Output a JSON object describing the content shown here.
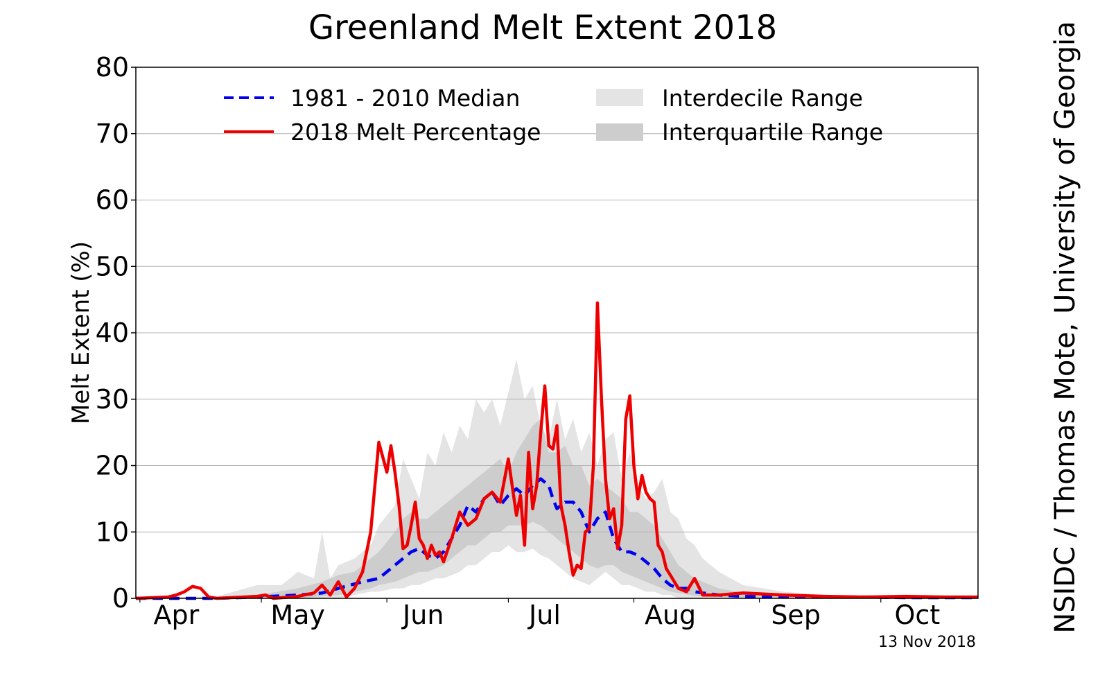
{
  "chart_data": {
    "type": "line",
    "title": "Greenland Melt Extent 2018",
    "xlabel": "",
    "ylabel": "Melt Extent (%)",
    "ylim": [
      0,
      80
    ],
    "yticks": [
      "0",
      "10",
      "20",
      "30",
      "40",
      "50",
      "60",
      "70",
      "80"
    ],
    "xlim": [
      0,
      208
    ],
    "xticks": [
      {
        "label": "Apr",
        "day": 10
      },
      {
        "label": "May",
        "day": 40
      },
      {
        "label": "Jun",
        "day": 71
      },
      {
        "label": "Jul",
        "day": 101
      },
      {
        "label": "Aug",
        "day": 132
      },
      {
        "label": "Sep",
        "day": 163
      },
      {
        "label": "Oct",
        "day": 193
      }
    ],
    "grid": "horizontal",
    "legend": {
      "placement": "top-center",
      "median_label": "1981 - 2010 Median",
      "melt_label": "2018 Melt Percentage",
      "interdecile_label": "Interdecile Range",
      "interquartile_label": "Interquartile Range"
    },
    "colors": {
      "median": "#0000ee",
      "melt": "#ee0000",
      "interdecile": "#e4e4e4",
      "interquartile": "#cdcdcd",
      "grid": "#b0b0b0"
    },
    "series": [
      {
        "name": "1981 - 2010 Median",
        "style": "dashed",
        "x": [
          0,
          10,
          20,
          30,
          40,
          46,
          50,
          56,
          60,
          64,
          66,
          68,
          70,
          72,
          74,
          76,
          78,
          80,
          82,
          84,
          86,
          88,
          90,
          92,
          94,
          96,
          98,
          100,
          102,
          103,
          104,
          106,
          108,
          110,
          112,
          114,
          116,
          118,
          120,
          122,
          124,
          126,
          128,
          130,
          132,
          134,
          136,
          138,
          140,
          144,
          150,
          160,
          170,
          180,
          190,
          200,
          208
        ],
        "values": [
          0,
          0,
          0,
          0.2,
          0.5,
          0.8,
          1.5,
          2.5,
          3,
          5,
          6,
          7,
          7.5,
          6.5,
          6,
          7,
          9,
          11,
          14,
          13,
          15,
          16,
          14,
          15.5,
          16.5,
          15.5,
          17,
          18,
          17,
          15,
          13.5,
          14.5,
          14.5,
          13,
          10,
          12,
          13,
          9,
          7,
          7,
          6.5,
          5.5,
          4.5,
          3,
          2,
          1.5,
          1.5,
          1,
          0.8,
          0.5,
          0.3,
          0.2,
          0.2,
          0.2,
          0.1,
          0.1,
          0.1
        ]
      },
      {
        "name": "2018 Melt Percentage",
        "style": "solid",
        "x": [
          0,
          8,
          10,
          12,
          14,
          16,
          18,
          20,
          30,
          32,
          34,
          40,
          44,
          46,
          48,
          50,
          52,
          54,
          56,
          58,
          60,
          62,
          63,
          64,
          65,
          66,
          67,
          68,
          69,
          70,
          71,
          72,
          73,
          74,
          75,
          76,
          78,
          80,
          82,
          84,
          86,
          88,
          90,
          92,
          94,
          95,
          96,
          97,
          98,
          99,
          100,
          101,
          102,
          103,
          104,
          105,
          106,
          107,
          108,
          109,
          110,
          111,
          112,
          113,
          114,
          115,
          116,
          117,
          118,
          119,
          120,
          121,
          122,
          123,
          124,
          125,
          126,
          127,
          128,
          129,
          130,
          131,
          132,
          134,
          136,
          138,
          140,
          144,
          150,
          160,
          170,
          180,
          190,
          200,
          208
        ],
        "values": [
          0,
          0.2,
          0.5,
          1,
          1.8,
          1.5,
          0.2,
          0,
          0.3,
          0.5,
          0,
          0.3,
          0.8,
          2,
          0.5,
          2.5,
          0.2,
          1.5,
          4,
          10,
          23.5,
          19,
          23,
          19,
          14,
          7.5,
          8,
          11,
          14.5,
          9,
          8,
          6,
          8,
          6.5,
          7,
          5.5,
          9,
          13,
          11,
          12,
          15,
          16,
          14.5,
          21,
          12.5,
          15.5,
          8,
          22,
          13.5,
          17,
          25,
          32,
          23,
          22.5,
          26,
          14,
          11,
          7,
          3.5,
          5,
          4.5,
          10,
          10.5,
          20,
          44.5,
          30,
          18,
          12,
          13.5,
          7.5,
          11,
          27,
          30.5,
          20,
          15,
          18.5,
          16,
          15,
          14.5,
          8,
          7,
          4.5,
          3.5,
          1.5,
          1,
          3,
          0.5,
          0.5,
          0.8,
          0.5,
          0.3,
          0.2,
          0.3,
          0.2,
          0.2
        ]
      }
    ],
    "bands": [
      {
        "name": "Interdecile Range",
        "x": [
          0,
          20,
          30,
          36,
          40,
          44,
          46,
          48,
          50,
          54,
          58,
          60,
          64,
          66,
          68,
          70,
          72,
          74,
          76,
          78,
          80,
          82,
          84,
          86,
          88,
          90,
          92,
          94,
          96,
          98,
          100,
          102,
          104,
          106,
          108,
          110,
          112,
          114,
          116,
          118,
          120,
          122,
          124,
          126,
          128,
          130,
          132,
          134,
          136,
          138,
          140,
          144,
          150,
          160,
          170,
          180,
          190,
          200,
          208
        ],
        "lower": [
          0,
          0,
          0,
          0,
          0,
          0,
          0,
          0,
          0,
          0.5,
          1,
          1,
          1.5,
          1.5,
          2,
          2,
          2.5,
          3,
          3,
          3.5,
          4,
          5,
          5,
          6,
          7,
          7,
          8,
          7,
          7,
          7.5,
          6.5,
          6,
          5,
          4,
          3,
          2.5,
          2,
          3,
          4,
          3,
          2,
          2,
          1.5,
          1,
          1,
          0.5,
          0.5,
          0,
          0,
          0,
          0,
          0,
          0,
          0,
          0,
          0,
          0,
          0,
          0
        ],
        "upper": [
          0,
          0.3,
          2,
          2,
          4,
          3,
          10,
          3,
          5,
          6,
          8,
          11,
          14,
          21,
          18,
          15,
          22,
          20,
          25,
          22,
          26,
          24,
          30,
          28,
          30,
          26,
          31,
          36,
          30,
          32,
          26,
          24,
          30,
          24,
          27,
          22,
          25,
          20,
          24,
          25,
          18,
          22,
          17,
          15,
          16,
          18,
          13,
          12,
          9,
          8,
          6,
          4,
          2,
          1,
          0.5,
          0.3,
          0.2,
          0.2,
          0.2
        ]
      },
      {
        "name": "Interquartile Range",
        "x": [
          0,
          20,
          30,
          40,
          46,
          50,
          54,
          58,
          60,
          64,
          66,
          68,
          70,
          72,
          74,
          76,
          78,
          80,
          82,
          84,
          86,
          88,
          90,
          92,
          94,
          96,
          98,
          100,
          102,
          104,
          106,
          108,
          110,
          112,
          114,
          116,
          118,
          120,
          122,
          124,
          126,
          128,
          130,
          132,
          134,
          136,
          138,
          140,
          144,
          150,
          160,
          170,
          180,
          190,
          200,
          208
        ],
        "lower": [
          0,
          0,
          0,
          0,
          0.3,
          0.5,
          1,
          1.5,
          2,
          2.5,
          3,
          3.5,
          4,
          4,
          4.5,
          5,
          6,
          7,
          8,
          8,
          9,
          10,
          10,
          11,
          11,
          11,
          11.5,
          11,
          10,
          9,
          8,
          7,
          6,
          5,
          4.5,
          5,
          5,
          4,
          3.5,
          3,
          2.5,
          2,
          1.5,
          1,
          0.8,
          0.6,
          0.4,
          0.3,
          0.2,
          0.1,
          0,
          0,
          0,
          0,
          0,
          0
        ],
        "upper": [
          0,
          0,
          0.5,
          1.5,
          2.5,
          3.5,
          4,
          6,
          7,
          10,
          12,
          13,
          12,
          12,
          13,
          14,
          15,
          16,
          17,
          18,
          19,
          20,
          21,
          19,
          22,
          24,
          26,
          27,
          22,
          22,
          23,
          20,
          20,
          17,
          18,
          17,
          16,
          15,
          13,
          13,
          12,
          11,
          9,
          7,
          5,
          4,
          3,
          2.5,
          1.5,
          0.8,
          0.4,
          0.2,
          0.1,
          0.1,
          0.1,
          0.1
        ]
      }
    ],
    "credit": "NSIDC / Thomas Mote, University of Georgia",
    "date_label": "13 Nov 2018"
  }
}
